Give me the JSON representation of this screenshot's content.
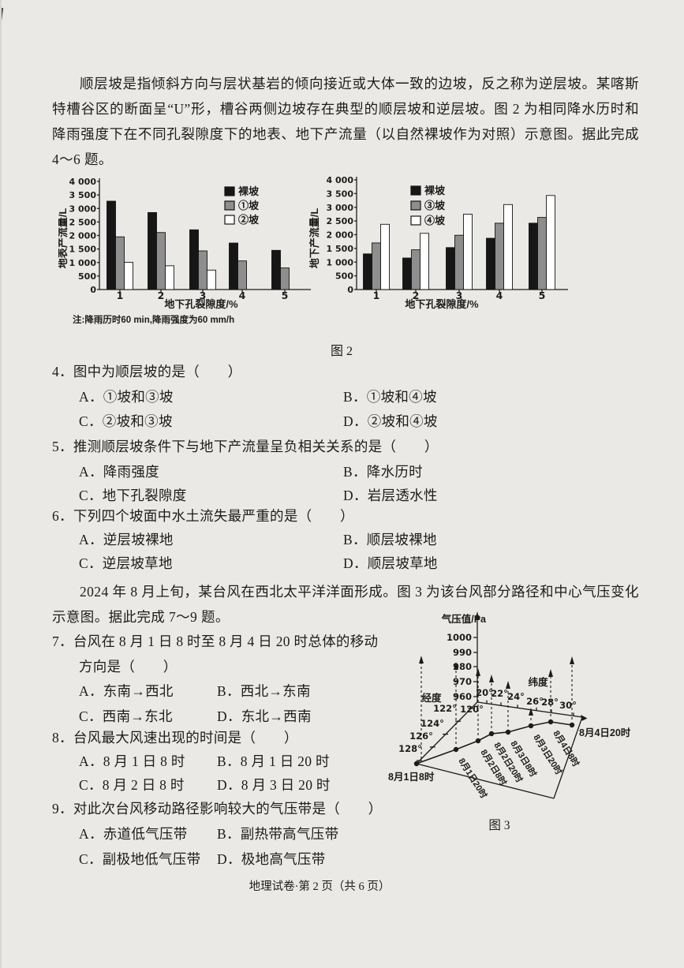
{
  "page": {
    "footer": "地理试卷·第 2 页（共 6 页）"
  },
  "intro_karst": "顺层坡是指倾斜方向与层状基岩的倾向接近或大体一致的边坡，反之称为逆层坡。某喀斯特槽谷区的断面呈“U”形，槽谷两侧边坡存在典型的顺层坡和逆层坡。图 2 为相同降水历时和降雨强度下在不同孔裂隙度下的地表、地下产流量（以自然裸坡作为对照）示意图。据此完成 4～6 题。",
  "intro_typhoon": "2024 年 8 月上旬，某台风在西北太平洋洋面形成。图 3 为该台风部分路径和中心气压变化示意图。据此完成 7～9 题。",
  "figure2_caption": "图 2",
  "figure3_caption": "图 3",
  "questions": [
    {
      "stem": "4．图中为顺层坡的是（　　）",
      "a": "A．①坡和③坡",
      "b": "B．①坡和④坡",
      "c": "C．②坡和③坡",
      "d": "D．②坡和④坡"
    },
    {
      "stem": "5．推测顺层坡条件下与地下产流量呈负相关关系的是（　　）",
      "a": "A．降雨强度",
      "b": "B．降水历时",
      "c": "C．地下孔裂隙度",
      "d": "D．岩层透水性"
    },
    {
      "stem": "6．下列四个坡面中水土流失最严重的是（　　）",
      "a": "A．逆层坡裸地",
      "b": "B．顺层坡裸地",
      "c": "C．逆层坡草地",
      "d": "D．顺层坡草地"
    },
    {
      "stem": "7．台风在 8 月 1 日 8 时至 8 月 4 日 20 时总体的移动",
      "stem2": "方向是（　　）",
      "a": "A．东南→西北",
      "b": "B．西北→东南",
      "c": "C．西南→东北",
      "d": "D．东北→西南"
    },
    {
      "stem": "8．台风最大风速出现的时间是（　　）",
      "a": "A．8 月 1 日 8 时",
      "b": "B．8 月 1 日 20 时",
      "c": "C．8 月 2 日 8 时",
      "d": "D．8 月 3 日 20 时"
    },
    {
      "stem": "9．对此次台风移动路径影响较大的气压带是（　　）",
      "a": "A．赤道低气压带",
      "b": "B．副热带高气压带",
      "c": "C．副极地低气压带",
      "d": "D．极地高气压带"
    }
  ],
  "chart_data": [
    {
      "type": "bar",
      "ylabel": "地表产流量/L",
      "xlabel": "地下孔裂隙度/%",
      "categories": [
        "1",
        "2",
        "3",
        "4",
        "5"
      ],
      "ylim": [
        0,
        4000
      ],
      "yticks": [
        "0",
        "500",
        "1 000",
        "1 500",
        "2 000",
        "2 500",
        "3 000",
        "3 500",
        "4 000"
      ],
      "series": [
        {
          "name": "裸坡",
          "color": "#161616",
          "values": [
            3270,
            2850,
            2210,
            1720,
            1450
          ]
        },
        {
          "name": "①坡",
          "color": "#8e8e8e",
          "values": [
            1950,
            2110,
            1430,
            1060,
            800
          ]
        },
        {
          "name": "②坡",
          "color": "#ffffff",
          "values": [
            1010,
            880,
            720,
            0,
            0
          ]
        }
      ],
      "legend_position": "top-right",
      "grid": false,
      "note": "注:降雨历时60 min,降雨强度为60 mm/h"
    },
    {
      "type": "bar",
      "ylabel": "地下产流量/L",
      "xlabel": "地下孔裂隙度/%",
      "categories": [
        "1",
        "2",
        "3",
        "4",
        "5"
      ],
      "ylim": [
        0,
        4000
      ],
      "yticks": [
        "0",
        "500",
        "1 000",
        "1 500",
        "2 000",
        "2 500",
        "3 000",
        "3 500",
        "4 000"
      ],
      "series": [
        {
          "name": "裸坡",
          "color": "#161616",
          "values": [
            1300,
            1150,
            1530,
            1870,
            2420
          ]
        },
        {
          "name": "③坡",
          "color": "#8e8e8e",
          "values": [
            1700,
            1450,
            1980,
            2420,
            2630
          ]
        },
        {
          "name": "④坡",
          "color": "#ffffff",
          "values": [
            2380,
            2050,
            2750,
            3100,
            3430
          ]
        }
      ],
      "legend_position": "top-left",
      "grid": false
    },
    {
      "type": "scatter",
      "title": "图 3",
      "zlabel": "气压值/Pa",
      "z_ticks": [
        "1000",
        "990",
        "980",
        "970",
        "960"
      ],
      "lon_axis": {
        "label": "经度",
        "ticks": [
          "120°",
          "122°",
          "124°",
          "126°",
          "128°"
        ]
      },
      "lat_axis": {
        "label": "纬度",
        "ticks": [
          "20°",
          "22°",
          "24°",
          "26°",
          "28°",
          "30°"
        ]
      },
      "points": [
        {
          "time": "8月1日8时",
          "lon": 128.0,
          "lat": 20.0,
          "pressure_est": 986
        },
        {
          "time": "8月1日20时",
          "lon": 125.7,
          "lat": 22.1,
          "pressure_est": 982
        },
        {
          "time": "8月2日8时",
          "lon": 124.4,
          "lat": 23.2,
          "pressure_est": 977
        },
        {
          "time": "8月2日20时",
          "lon": 123.3,
          "lat": 23.7,
          "pressure_est": 973
        },
        {
          "time": "8月3日8时",
          "lon": 122.9,
          "lat": 24.9,
          "pressure_est": 969
        },
        {
          "time": "8月3日20时",
          "lon": 121.8,
          "lat": 26.3,
          "pressure_est": 950
        },
        {
          "time": "8月4日8时",
          "lon": 121.0,
          "lat": 27.6,
          "pressure_est": 977
        },
        {
          "time": "8月4日20时",
          "lon": 121.0,
          "lat": 29.6,
          "pressure_est": 985
        }
      ]
    }
  ]
}
